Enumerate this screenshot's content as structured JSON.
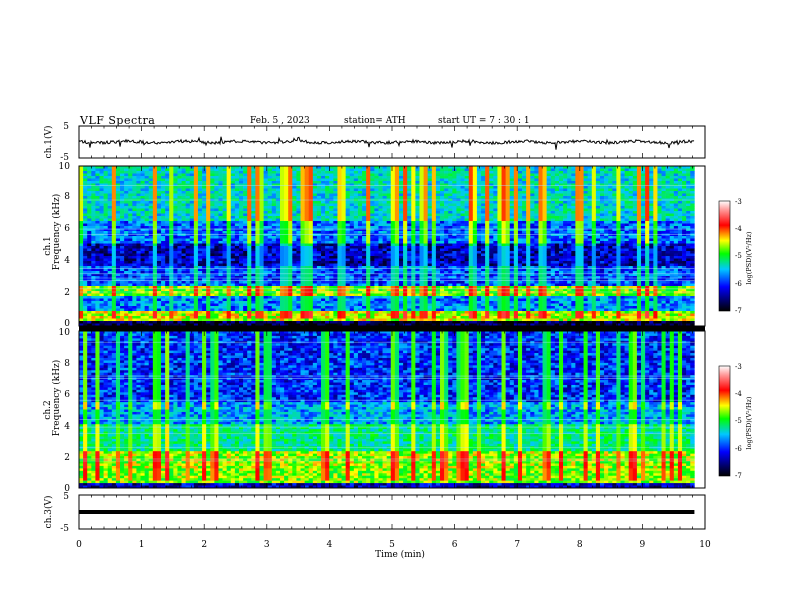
{
  "header": {
    "title": "VLF  Spectra",
    "date": "Feb. 5  , 2023",
    "station": "station= ATH",
    "start": "start  UT  =   7  : 30 : 1"
  },
  "chart_data": [
    {
      "type": "line",
      "panel": "ch1-waveform",
      "ylabel": "ch.1(V)",
      "ylim": [
        -5,
        5
      ],
      "yticks": [
        "5",
        "-5"
      ],
      "xlim": [
        0,
        10
      ],
      "signal_end_min": 9.83,
      "baseline": 0
    },
    {
      "type": "heatmap",
      "panel": "ch1-spectrogram",
      "ylabel": [
        "ch.1",
        "Frequency  (kHz)"
      ],
      "ylim": [
        0,
        10
      ],
      "yticks": [
        "0",
        "2",
        "4",
        "6",
        "8",
        "10"
      ],
      "xlim": [
        0,
        10
      ],
      "signal_end_min": 9.83,
      "colorbar": {
        "label": "log(PSD)(V²/Hz)",
        "range": [
          -7,
          -3
        ],
        "ticks": [
          "-3",
          "-4",
          "-5",
          "-6",
          "-7"
        ]
      },
      "bands": [
        {
          "khz": [
            0,
            0.3
          ],
          "level": -7
        },
        {
          "khz": [
            0.3,
            1.0
          ],
          "level": -4.6
        },
        {
          "khz": [
            1.0,
            1.8
          ],
          "level": -6.0
        },
        {
          "khz": [
            1.8,
            2.5
          ],
          "level": -4.8
        },
        {
          "khz": [
            2.5,
            3.8
          ],
          "level": -6.2
        },
        {
          "khz": [
            3.8,
            5.1
          ],
          "level": -6.6
        },
        {
          "khz": [
            5.1,
            6.5
          ],
          "level": -6.1
        },
        {
          "khz": [
            6.5,
            10
          ],
          "level": -5.6
        }
      ]
    },
    {
      "type": "heatmap",
      "panel": "ch2-spectrogram",
      "ylabel": [
        "ch.2",
        "Frequency  (kHz)"
      ],
      "ylim": [
        0,
        10
      ],
      "yticks": [
        "0",
        "2",
        "4",
        "6",
        "8",
        "10"
      ],
      "xlim": [
        0,
        10
      ],
      "signal_end_min": 9.83,
      "colorbar": {
        "label": "log(PSD)(V²/Hz)",
        "range": [
          -7,
          -3
        ],
        "ticks": [
          "-3",
          "-4",
          "-5",
          "-6",
          "-7"
        ]
      },
      "bands": [
        {
          "khz": [
            0,
            0.3
          ],
          "level": -6.6
        },
        {
          "khz": [
            0.3,
            1.3
          ],
          "level": -4.8
        },
        {
          "khz": [
            1.3,
            2.4
          ],
          "level": -4.7
        },
        {
          "khz": [
            2.4,
            4.0
          ],
          "level": -5.4
        },
        {
          "khz": [
            4.0,
            5.5
          ],
          "level": -5.9
        },
        {
          "khz": [
            5.5,
            10
          ],
          "level": -6.3
        }
      ]
    },
    {
      "type": "line",
      "panel": "ch3-waveform",
      "ylabel": "ch.3(V)",
      "ylim": [
        -5,
        5
      ],
      "yticks": [
        "5",
        "-5"
      ],
      "xlim": [
        0,
        10
      ],
      "xticks": [
        "0",
        "1",
        "2",
        "3",
        "4",
        "5",
        "6",
        "7",
        "8",
        "9",
        "10"
      ],
      "xlabel": "Time  (min)",
      "signal_end_min": 9.83,
      "baseline": 0
    }
  ]
}
